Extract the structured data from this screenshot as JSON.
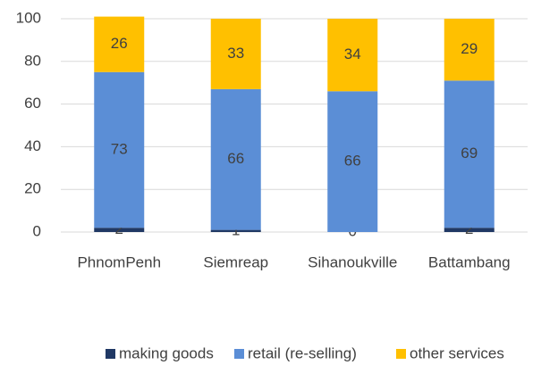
{
  "chart_data": {
    "type": "stacked_bar",
    "categories": [
      "PhnomPenh",
      "Siemreap",
      "Sihanoukville",
      "Battambang"
    ],
    "series": [
      {
        "name": "making goods",
        "color": "#203864",
        "values": [
          2,
          1,
          0,
          2
        ]
      },
      {
        "name": "retail (re-selling)",
        "color": "#5b8ed6",
        "values": [
          73,
          66,
          66,
          69
        ]
      },
      {
        "name": "other services",
        "color": "#ffc000",
        "values": [
          26,
          33,
          34,
          29
        ]
      }
    ],
    "ylim": [
      0,
      100
    ],
    "yticks": [
      0,
      20,
      40,
      60,
      80,
      100
    ],
    "grid": true,
    "legend": "bottom"
  }
}
